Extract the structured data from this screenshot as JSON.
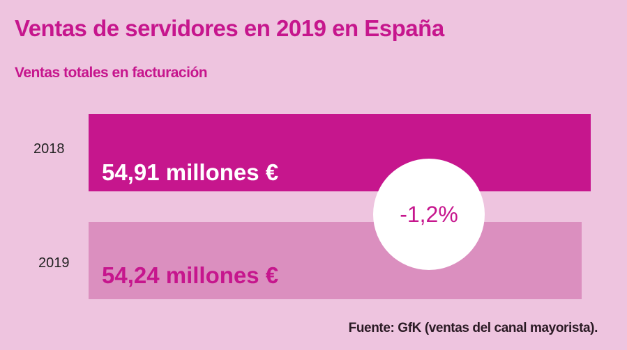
{
  "chart_data": {
    "type": "bar",
    "orientation": "horizontal",
    "title": "Ventas de servidores en 2019 en España",
    "subtitle": "Ventas totales en facturación",
    "categories": [
      "2018",
      "2019"
    ],
    "values": [
      54.91,
      54.24
    ],
    "data_labels": [
      "54,91 millones €",
      "54,24 millones €"
    ],
    "unit": "millones €",
    "annotation": "-1,2%",
    "source": "Fuente: GfK (ventas del canal mayorista).",
    "colors": {
      "background": "#eec4df",
      "bar_2018": "#c6168d",
      "bar_2019": "#db8fbf",
      "label_2018": "#ffffff",
      "label_2019": "#c6168d"
    },
    "grid": false
  }
}
